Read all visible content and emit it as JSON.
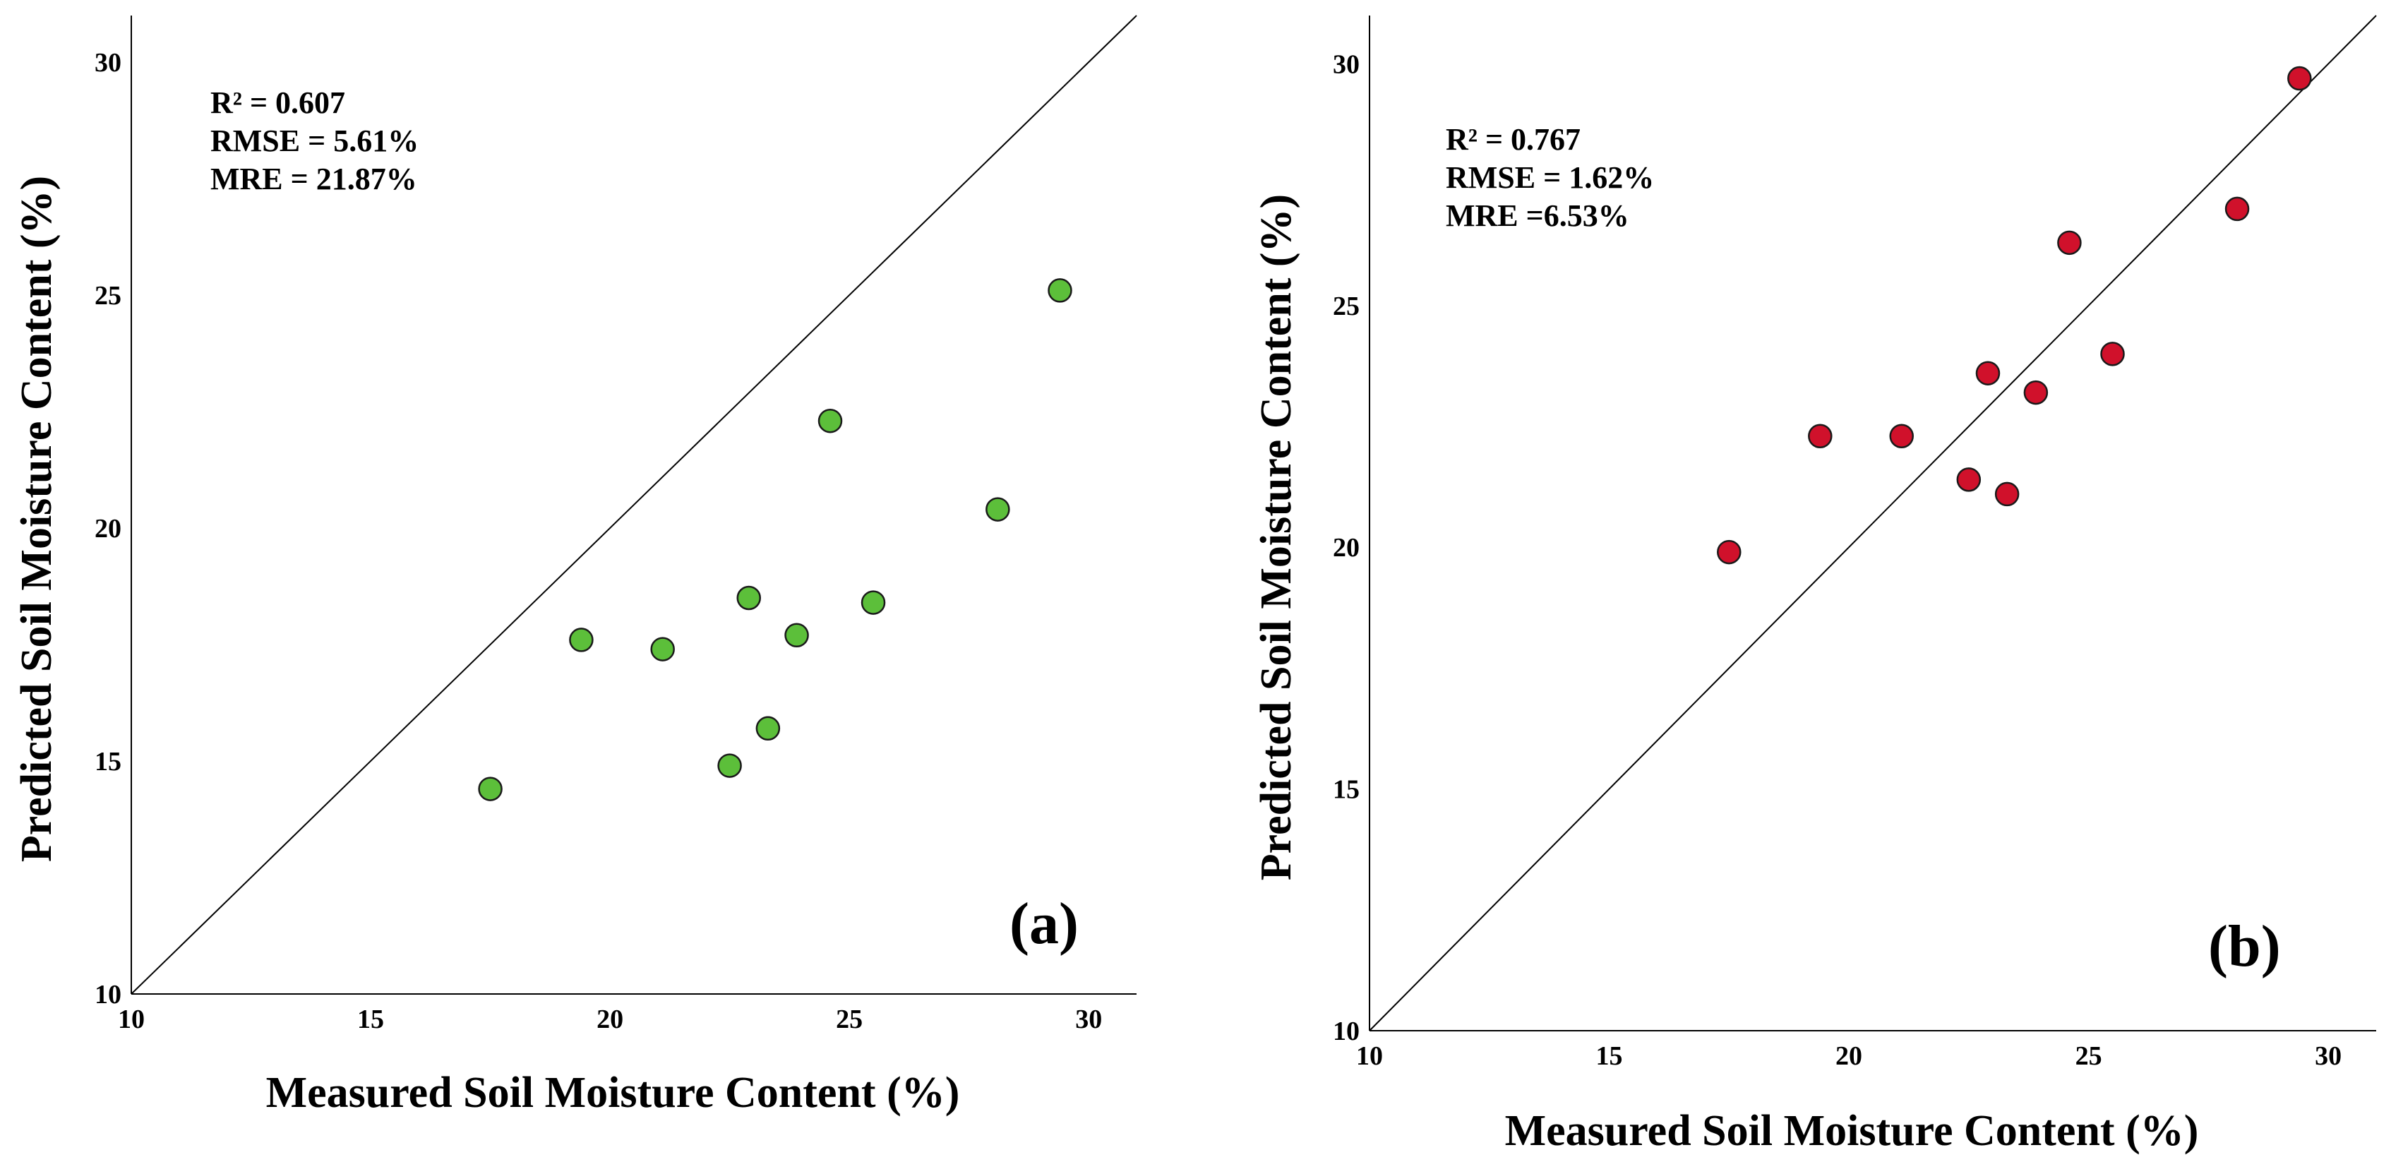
{
  "chart_data": [
    {
      "type": "scatter",
      "panel_label": "(a)",
      "xlabel": "Measured Soil Moisture Content (%)",
      "ylabel": "Predicted Soil Moisture Content (%)",
      "xlim": [
        10,
        31
      ],
      "ylim": [
        10,
        31
      ],
      "xticks": [
        "10",
        "15",
        "20",
        "25",
        "30"
      ],
      "yticks": [
        "10",
        "15",
        "20",
        "25",
        "30"
      ],
      "reference_line": "1:1",
      "grid": false,
      "stats": [
        "R² = 0.607",
        "RMSE = 5.61%",
        "MRE = 21.87%"
      ],
      "point_color": "#5cbf3a",
      "x": [
        17.5,
        19.4,
        21.1,
        22.5,
        22.9,
        23.3,
        23.9,
        24.6,
        25.5,
        28.1,
        29.4
      ],
      "y": [
        14.4,
        17.6,
        17.4,
        14.9,
        18.5,
        15.7,
        17.7,
        22.3,
        18.4,
        20.4,
        25.1
      ]
    },
    {
      "type": "scatter",
      "panel_label": "(b)",
      "xlabel": "Measured Soil Moisture Content (%)",
      "ylabel": "Predicted Soil Moisture Content (%)",
      "xlim": [
        10,
        31
      ],
      "ylim": [
        10,
        31
      ],
      "xticks": [
        "10",
        "15",
        "20",
        "25",
        "30"
      ],
      "yticks": [
        "10",
        "15",
        "20",
        "25",
        "30"
      ],
      "reference_line": "1:1",
      "grid": false,
      "stats": [
        "R² = 0.767",
        "RMSE = 1.62%",
        "MRE =6.53%"
      ],
      "point_color": "#d0112b",
      "x": [
        17.5,
        19.4,
        21.1,
        22.5,
        22.9,
        23.3,
        23.9,
        24.6,
        25.5,
        28.1,
        29.4
      ],
      "y": [
        19.9,
        22.3,
        22.3,
        21.4,
        23.6,
        21.1,
        23.2,
        26.3,
        24.0,
        27.0,
        29.7
      ]
    }
  ]
}
